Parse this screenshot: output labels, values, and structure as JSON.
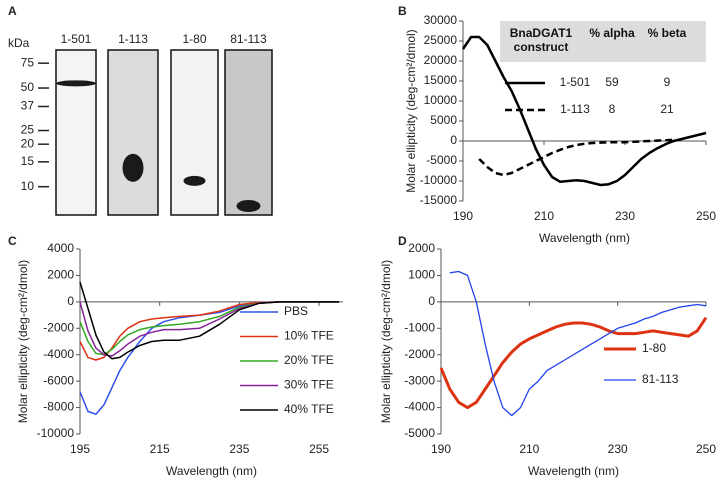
{
  "chart_data": [
    {
      "type": "gel",
      "panel": "A",
      "ylabel": "kDa",
      "log_scale": true,
      "ylim": [
        6.3,
        93
      ],
      "yticks": [
        75,
        50,
        37,
        25,
        20,
        15,
        10
      ],
      "categories": [
        "1-501",
        "1-113",
        "1-80",
        "81-113"
      ],
      "values": [
        54,
        13.6,
        11,
        7.3
      ]
    },
    {
      "type": "line",
      "panel": "B",
      "xlabel": "Wavelength (nm)",
      "ylabel": "Molar ellipticity (deg-cm²/dmol)",
      "xlim": [
        190,
        250
      ],
      "xticks": [
        190,
        210,
        230,
        250
      ],
      "ylim": [
        -15000,
        30000
      ],
      "yticks": [
        -15000,
        -10000,
        -5000,
        0,
        5000,
        10000,
        15000,
        20000,
        25000,
        30000
      ],
      "table_header": [
        "BnaDGAT1 construct",
        "% alpha",
        "% beta"
      ],
      "x": [
        190,
        192,
        194,
        196,
        198,
        200,
        202,
        204,
        206,
        208,
        210,
        212,
        214,
        216,
        218,
        220,
        222,
        224,
        226,
        228,
        230,
        232,
        234,
        236,
        238,
        240,
        242,
        244,
        246,
        248,
        250
      ],
      "series": [
        {
          "name": "1-501",
          "color": "#000000",
          "line_style": "solid",
          "line_width": 2.5,
          "alpha": 59,
          "beta": 9,
          "values": [
            23000,
            26000,
            26000,
            24000,
            20000,
            16000,
            12500,
            8000,
            3000,
            -2000,
            -6000,
            -9000,
            -10200,
            -10000,
            -9800,
            -10000,
            -10500,
            -11000,
            -10800,
            -10000,
            -8500,
            -6500,
            -4500,
            -3000,
            -1800,
            -800,
            0,
            500,
            1000,
            1500,
            2000
          ]
        },
        {
          "name": "1-113",
          "color": "#000000",
          "line_style": "dashed",
          "line_width": 2.5,
          "alpha": 8,
          "beta": 21,
          "values": [
            null,
            null,
            -4500,
            -6500,
            -8000,
            -8500,
            -8000,
            -7000,
            -6000,
            -5000,
            -4000,
            -3000,
            -2200,
            -1500,
            -1000,
            -700,
            -500,
            -400,
            -300,
            -300,
            -300,
            -200,
            -100,
            0,
            100,
            200,
            300,
            null,
            null,
            null,
            null
          ]
        }
      ]
    },
    {
      "type": "line",
      "panel": "C",
      "xlabel": "Wavelength (nm)",
      "ylabel": "Molar ellipticity (deg-cm²/dmol)",
      "legend": "right",
      "xlim": [
        195,
        261
      ],
      "xticks": [
        195,
        215,
        235,
        255
      ],
      "ylim": [
        -10000,
        4000
      ],
      "yticks": [
        -10000,
        -8000,
        -6000,
        -4000,
        -2000,
        0,
        2000,
        4000
      ],
      "x": [
        195,
        197,
        199,
        201,
        203,
        205,
        207,
        210,
        213,
        216,
        220,
        225,
        230,
        235,
        240,
        245,
        250,
        255,
        260
      ],
      "series": [
        {
          "name": "PBS",
          "color": "#3050ee",
          "line_style": "solid",
          "line_width": 1.5,
          "values": [
            -6800,
            -8300,
            -8500,
            -7800,
            -6500,
            -5200,
            -4200,
            -3000,
            -2000,
            -1500,
            -1200,
            -1000,
            -800,
            -300,
            -100,
            0,
            0,
            0,
            0
          ]
        },
        {
          "name": "10% TFE",
          "color": "#dd3311",
          "line_style": "solid",
          "line_width": 1.5,
          "values": [
            -3000,
            -4200,
            -4400,
            -4200,
            -3500,
            -2600,
            -2000,
            -1500,
            -1300,
            -1200,
            -1100,
            -1000,
            -700,
            -200,
            -50,
            0,
            0,
            0,
            0
          ]
        },
        {
          "name": "20% TFE",
          "color": "#33aa22",
          "line_style": "solid",
          "line_width": 1.5,
          "values": [
            -1500,
            -3000,
            -3900,
            -4000,
            -3600,
            -3000,
            -2500,
            -2100,
            -1900,
            -1800,
            -1700,
            -1500,
            -1100,
            -400,
            -100,
            0,
            0,
            0,
            0
          ]
        },
        {
          "name": "30% TFE",
          "color": "#882299",
          "line_style": "solid",
          "line_width": 1.5,
          "values": [
            0,
            -2200,
            -3500,
            -4000,
            -4100,
            -3700,
            -3200,
            -2600,
            -2300,
            -2100,
            -2100,
            -2000,
            -1300,
            -500,
            -100,
            0,
            0,
            0,
            0
          ]
        },
        {
          "name": "40% TFE",
          "color": "#000000",
          "line_style": "solid",
          "line_width": 1.5,
          "values": [
            1500,
            -500,
            -2500,
            -3800,
            -4300,
            -4200,
            -3800,
            -3300,
            -3000,
            -2900,
            -2900,
            -2600,
            -1700,
            -600,
            -100,
            0,
            0,
            0,
            0
          ]
        }
      ]
    },
    {
      "type": "line",
      "panel": "D",
      "xlabel": "Wavelength (nm)",
      "ylabel": "Molar ellipticity (deg-cm²/dmol)",
      "legend": "lower right",
      "xlim": [
        190,
        250
      ],
      "xticks": [
        190,
        210,
        230,
        250
      ],
      "ylim": [
        -5000,
        2000
      ],
      "yticks": [
        -5000,
        -4000,
        -3000,
        -2000,
        -1000,
        0,
        1000,
        2000
      ],
      "x": [
        190,
        192,
        194,
        196,
        198,
        200,
        202,
        204,
        206,
        208,
        210,
        212,
        214,
        216,
        218,
        220,
        222,
        224,
        226,
        228,
        230,
        232,
        234,
        236,
        238,
        240,
        242,
        244,
        246,
        248,
        250
      ],
      "series": [
        {
          "name": "1-80",
          "color": "#dd3311",
          "line_style": "solid",
          "line_width": 3,
          "values": [
            -2500,
            -3300,
            -3800,
            -4000,
            -3800,
            -3300,
            -2800,
            -2300,
            -1900,
            -1600,
            -1400,
            -1250,
            -1100,
            -950,
            -850,
            -800,
            -800,
            -850,
            -950,
            -1100,
            -1200,
            -1200,
            -1200,
            -1150,
            -1100,
            -1150,
            -1200,
            -1250,
            -1300,
            -1100,
            -600
          ]
        },
        {
          "name": "81-113",
          "color": "#2244ee",
          "line_style": "solid",
          "line_width": 1.3,
          "values": [
            null,
            1100,
            1150,
            1000,
            0,
            -1600,
            -3000,
            -4000,
            -4300,
            -4000,
            -3300,
            -3000,
            -2600,
            -2400,
            -2200,
            -2000,
            -1800,
            -1600,
            -1400,
            -1200,
            -1000,
            -900,
            -800,
            -650,
            -550,
            -400,
            -300,
            -200,
            -150,
            -100,
            -150
          ]
        }
      ]
    }
  ]
}
